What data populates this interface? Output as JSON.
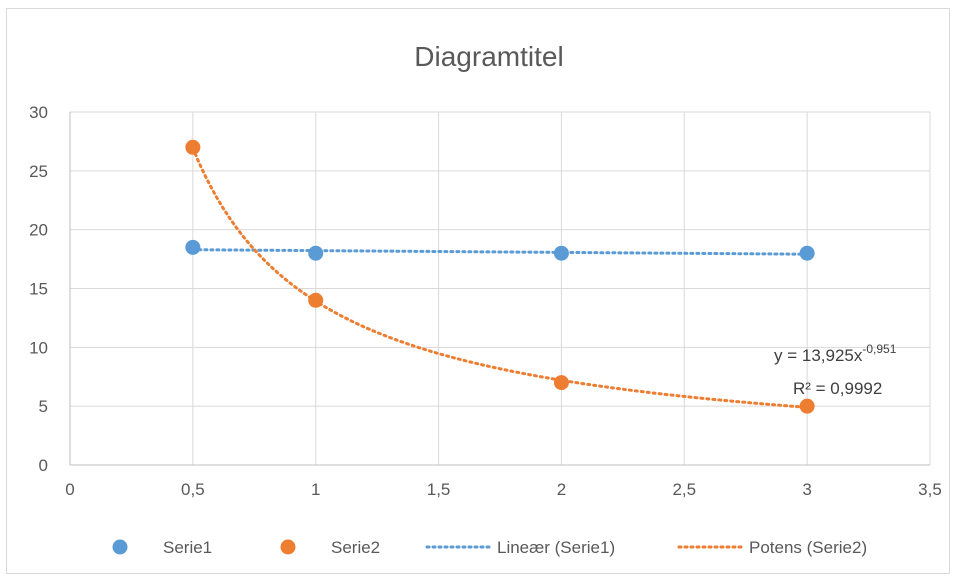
{
  "chart_data": {
    "type": "scatter",
    "title": "Diagramtitel",
    "xlim": [
      0,
      3.5
    ],
    "ylim": [
      0,
      30
    ],
    "x_ticks": [
      0,
      0.5,
      1,
      1.5,
      2,
      2.5,
      3,
      3.5
    ],
    "x_tick_labels": [
      "0",
      "0,5",
      "1",
      "1,5",
      "2",
      "2,5",
      "3",
      "3,5"
    ],
    "y_ticks": [
      0,
      5,
      10,
      15,
      20,
      25,
      30
    ],
    "y_tick_labels": [
      "0",
      "5",
      "10",
      "15",
      "20",
      "25",
      "30"
    ],
    "grid": true,
    "legend_position": "bottom",
    "series": [
      {
        "name": "Serie1",
        "color": "#5b9bd5",
        "x": [
          0.5,
          1,
          2,
          3
        ],
        "y": [
          18.5,
          18,
          18,
          18
        ]
      },
      {
        "name": "Serie2",
        "color": "#ed7d31",
        "x": [
          0.5,
          1,
          2,
          3
        ],
        "y": [
          27,
          14,
          7,
          5
        ]
      }
    ],
    "trendlines": [
      {
        "name": "Lineær (Serie1)",
        "type": "linear",
        "series": "Serie1",
        "color": "#5b9bd5"
      },
      {
        "name": "Potens (Serie2)",
        "type": "power",
        "series": "Serie2",
        "color": "#ed7d31",
        "coefficient": 13.925,
        "exponent": -0.951,
        "equation": {
          "prefix": "y = 13,925x",
          "exponent_text": "-0,951"
        },
        "r_squared_text": "R² = 0,9992"
      }
    ]
  }
}
